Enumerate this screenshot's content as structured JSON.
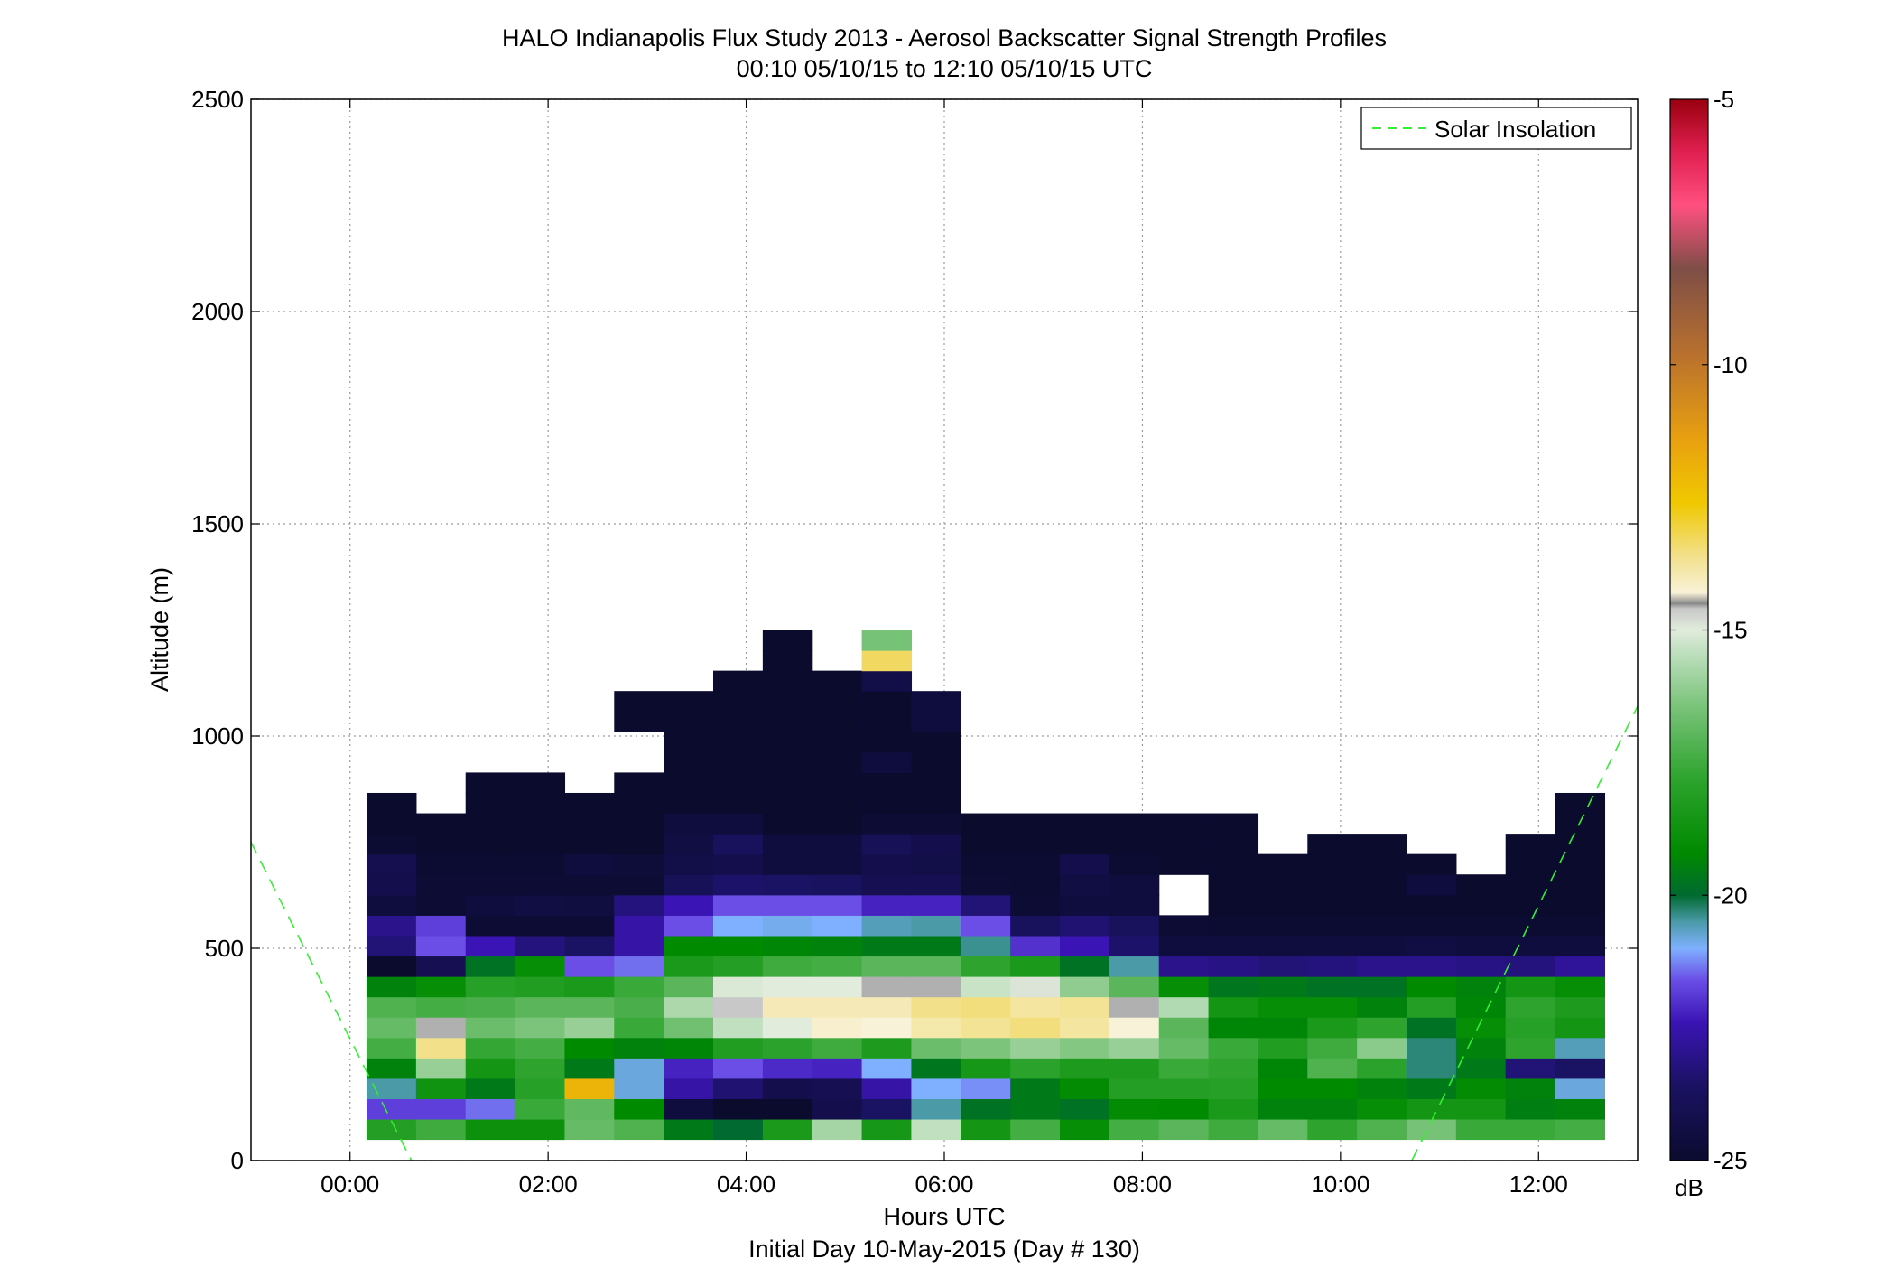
{
  "chart_data": {
    "type": "heatmap",
    "title": "HALO Indianapolis Flux Study 2013 - Aerosol Backscatter Signal Strength Profiles",
    "subtitle": "00:10 05/10/15 to 12:10 05/10/15  UTC",
    "xlabel": "Hours UTC",
    "xlabel2": "Initial Day 10-May-2015 (Day # 130)",
    "ylabel": "Altitude (m)",
    "x_ticks": [
      0,
      2,
      4,
      6,
      8,
      10,
      12
    ],
    "x_tick_labels": [
      "00:00",
      "02:00",
      "04:00",
      "06:00",
      "08:00",
      "10:00",
      "12:00"
    ],
    "xlim": [
      -1.0,
      13.0
    ],
    "y_ticks": [
      0,
      500,
      1000,
      1500,
      2000,
      2500
    ],
    "y_tick_labels": [
      "0",
      "500",
      "1000",
      "1500",
      "2000",
      "2500"
    ],
    "ylim": [
      0,
      2500
    ],
    "grid": true,
    "colorbar": {
      "label": "dB",
      "range": [
        -25,
        -5
      ],
      "ticks": [
        -25,
        -20,
        -15,
        -10,
        -5
      ],
      "tick_labels": [
        "-25",
        "-20",
        "-15",
        "-10",
        "-5"
      ]
    },
    "legend": {
      "position": "top-right",
      "entries": [
        {
          "name": "Solar Insolation",
          "style": "dashed",
          "color": "#33ee33"
        }
      ]
    },
    "solar_insolation": [
      {
        "x": [
          -1.0,
          0.62
        ],
        "y": [
          750,
          0
        ]
      },
      {
        "x": [
          10.72,
          13.0
        ],
        "y": [
          0,
          1070
        ]
      }
    ],
    "cell_time_start": 0.1667,
    "cell_time_step": 0.5,
    "cell_alt_start": 50,
    "cell_alt_step": 48,
    "cell_value_units": "dB",
    "no_data": null,
    "values": [
      [
        -18.1,
        -17.5,
        -18.8,
        -18.8,
        -16.8,
        -17.2,
        -19.6,
        -20.0,
        -18.4,
        -15.8,
        -18.5,
        -15.4,
        -18.6,
        -17.4,
        -19.0,
        -17.4,
        -17.0,
        -17.5,
        -16.8,
        -17.8,
        -17.2,
        -16.5,
        -17.6,
        -17.6,
        -17.4
      ],
      [
        -21.8,
        -21.8,
        -21.4,
        -17.6,
        -16.9,
        -19.2,
        -24.6,
        -25.0,
        -25.0,
        -24.2,
        -23.6,
        -20.5,
        -19.8,
        -19.6,
        -19.8,
        -19.1,
        -19.2,
        -18.4,
        -19.4,
        -19.4,
        -19.0,
        -18.6,
        -18.6,
        -19.5,
        -19.4
      ],
      [
        -20.5,
        -18.7,
        -19.6,
        -18.0,
        -12.0,
        -20.8,
        -22.6,
        -23.4,
        -24.2,
        -24.0,
        -22.6,
        -21.0,
        -21.2,
        -19.6,
        -19.1,
        -18.1,
        -18.1,
        -18.0,
        -19.2,
        -19.2,
        -19.4,
        -19.6,
        -19.1,
        -19.4,
        -20.8
      ],
      [
        -19.4,
        -16.0,
        -18.6,
        -17.8,
        -19.6,
        -20.8,
        -22.2,
        -21.6,
        -22.1,
        -22.2,
        -21.0,
        -19.7,
        -18.5,
        -17.9,
        -18.3,
        -18.3,
        -17.6,
        -17.8,
        -19.3,
        -17.2,
        -17.9,
        -20.3,
        -19.6,
        -23.3,
        -23.6
      ],
      [
        -17.4,
        -13.6,
        -17.7,
        -17.4,
        -19.2,
        -19.4,
        -19.3,
        -18.2,
        -17.9,
        -17.5,
        -18.3,
        -16.7,
        -16.4,
        -16.0,
        -16.3,
        -16.0,
        -16.8,
        -17.6,
        -18.2,
        -17.5,
        -16.2,
        -20.3,
        -19.4,
        -17.8,
        -20.6
      ],
      [
        -16.8,
        -14.5,
        -16.7,
        -16.4,
        -16.0,
        -17.6,
        -16.6,
        -15.4,
        -15.0,
        -14.2,
        -14.3,
        -13.9,
        -13.7,
        -13.5,
        -13.8,
        -14.3,
        -17.0,
        -19.3,
        -19.3,
        -18.4,
        -17.8,
        -19.8,
        -19.0,
        -18.0,
        -18.6
      ],
      [
        -17.2,
        -17.4,
        -17.3,
        -17.0,
        -17.0,
        -17.3,
        -15.7,
        -14.6,
        -14.0,
        -14.0,
        -14.0,
        -13.6,
        -13.5,
        -13.8,
        -13.7,
        -14.5,
        -15.6,
        -18.6,
        -19.0,
        -19.0,
        -19.4,
        -18.1,
        -19.3,
        -17.8,
        -18.3
      ],
      [
        -19.4,
        -19.0,
        -18.0,
        -18.2,
        -18.4,
        -17.6,
        -17.0,
        -15.1,
        -15.0,
        -15.0,
        -14.5,
        -14.5,
        -15.3,
        -14.9,
        -16.1,
        -17.0,
        -19.0,
        -19.7,
        -19.6,
        -19.8,
        -19.8,
        -19.2,
        -19.4,
        -18.6,
        -19.0
      ],
      [
        -25.0,
        -24.0,
        -19.8,
        -19.0,
        -21.6,
        -21.4,
        -18.4,
        -18.1,
        -17.5,
        -17.4,
        -17.0,
        -17.0,
        -17.8,
        -18.4,
        -19.8,
        -20.5,
        -23.0,
        -23.1,
        -23.3,
        -23.2,
        -23.0,
        -23.0,
        -23.1,
        -23.2,
        -22.8
      ],
      [
        -23.3,
        -21.6,
        -22.4,
        -23.2,
        -23.6,
        -22.6,
        -19.2,
        -19.2,
        -19.3,
        -19.4,
        -19.6,
        -19.6,
        -20.4,
        -22.0,
        -22.4,
        -23.5,
        -24.6,
        -24.6,
        -24.6,
        -24.6,
        -24.6,
        -24.4,
        -24.6,
        -24.6,
        -24.6
      ],
      [
        -23.0,
        -21.8,
        -24.8,
        -24.8,
        -24.8,
        -22.6,
        -21.6,
        -21.0,
        -20.9,
        -21.0,
        -20.6,
        -20.5,
        -21.6,
        -23.8,
        -23.4,
        -23.8,
        -24.8,
        -24.9,
        -24.9,
        -24.9,
        -24.9,
        -24.9,
        -24.9,
        -24.9,
        -24.9
      ],
      [
        -24.6,
        -24.8,
        -24.6,
        -24.4,
        -24.5,
        -23.2,
        -22.4,
        -21.6,
        -21.6,
        -21.6,
        -22.2,
        -22.2,
        -23.3,
        -24.8,
        -24.6,
        -24.6,
        null,
        -25.0,
        -25.0,
        -25.0,
        -25.0,
        -25.0,
        -25.0,
        -25.0,
        -25.0
      ],
      [
        -24.2,
        -24.8,
        -24.8,
        -24.8,
        -24.8,
        -24.8,
        -23.9,
        -23.5,
        -23.6,
        -23.7,
        -24.0,
        -24.0,
        -24.8,
        -24.9,
        -24.4,
        -24.6,
        null,
        -25.0,
        -25.0,
        -25.0,
        -25.0,
        -24.6,
        -25.0,
        -25.0,
        -25.0
      ],
      [
        -24.1,
        -24.9,
        -24.9,
        -24.9,
        -24.6,
        -24.7,
        -24.3,
        -24.2,
        -24.6,
        -24.6,
        -24.2,
        -24.3,
        -24.9,
        -24.9,
        -24.2,
        -24.9,
        -25.0,
        -25.0,
        -25.0,
        -25.0,
        -25.0,
        -25.0,
        null,
        -25.0,
        -25.0
      ],
      [
        -24.9,
        -25.0,
        -25.0,
        -25.0,
        -25.0,
        -25.0,
        -24.4,
        -23.8,
        -24.6,
        -24.6,
        -23.9,
        -24.2,
        -25.0,
        -25.0,
        -25.0,
        -25.0,
        -25.0,
        -25.0,
        null,
        -25.0,
        -25.0,
        null,
        null,
        -25.0,
        -25.0
      ],
      [
        -25.0,
        -25.0,
        -25.0,
        -25.0,
        -25.0,
        -25.0,
        -24.6,
        -24.6,
        -25.0,
        -25.0,
        -24.8,
        -24.8,
        -25.0,
        -25.0,
        -25.0,
        -25.0,
        -25.0,
        -25.0,
        null,
        null,
        null,
        null,
        null,
        null,
        -25.0
      ],
      [
        -25.0,
        null,
        -25.0,
        -25.0,
        -25.0,
        -25.0,
        -25.0,
        -25.0,
        -25.0,
        -25.0,
        -25.0,
        -25.0,
        null,
        null,
        null,
        null,
        null,
        null,
        null,
        null,
        null,
        null,
        null,
        null,
        -25.0
      ],
      [
        null,
        null,
        -25.0,
        -25.0,
        null,
        -25.0,
        -25.0,
        -25.0,
        -25.0,
        -25.0,
        -25.0,
        -25.0,
        null,
        null,
        null,
        null,
        null,
        null,
        null,
        null,
        null,
        null,
        null,
        null,
        null
      ],
      [
        null,
        null,
        null,
        null,
        null,
        null,
        -25.0,
        -25.0,
        -25.0,
        -25.0,
        -24.6,
        -25.0,
        null,
        null,
        null,
        null,
        null,
        null,
        null,
        null,
        null,
        null,
        null,
        null,
        null
      ],
      [
        null,
        null,
        null,
        null,
        null,
        null,
        -25.0,
        -25.0,
        -25.0,
        -25.0,
        -25.0,
        -25.0,
        null,
        null,
        null,
        null,
        null,
        null,
        null,
        null,
        null,
        null,
        null,
        null,
        null
      ],
      [
        null,
        null,
        null,
        null,
        null,
        -25.0,
        -25.0,
        -25.0,
        -25.0,
        -25.0,
        -25.0,
        -24.6,
        null,
        null,
        null,
        null,
        null,
        null,
        null,
        null,
        null,
        null,
        null,
        null,
        null
      ],
      [
        null,
        null,
        null,
        null,
        null,
        -25.0,
        -25.0,
        -25.0,
        -25.0,
        -25.0,
        -25.0,
        -24.6,
        null,
        null,
        null,
        null,
        null,
        null,
        null,
        null,
        null,
        null,
        null,
        null,
        null
      ],
      [
        null,
        null,
        null,
        null,
        null,
        null,
        null,
        -25.0,
        -25.0,
        -25.0,
        -24.3,
        null,
        null,
        null,
        null,
        null,
        null,
        null,
        null,
        null,
        null,
        null,
        null,
        null,
        null
      ],
      [
        null,
        null,
        null,
        null,
        null,
        null,
        null,
        null,
        -25.0,
        null,
        -13.3,
        null,
        null,
        null,
        null,
        null,
        null,
        null,
        null,
        null,
        null,
        null,
        null,
        null,
        null
      ],
      [
        null,
        null,
        null,
        null,
        null,
        null,
        null,
        null,
        -25.0,
        null,
        -16.5,
        null,
        null,
        null,
        null,
        null,
        null,
        null,
        null,
        null,
        null,
        null,
        null,
        null,
        null
      ]
    ]
  }
}
